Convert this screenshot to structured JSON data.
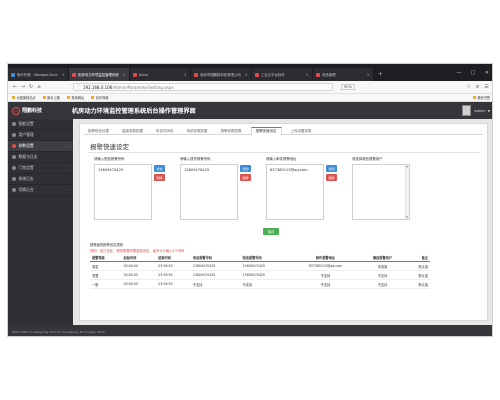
{
  "browser": {
    "tabs": [
      {
        "label": "轴令外观 - ManagerZone",
        "color": "#3b8dd8",
        "active": false
      },
      {
        "label": "机房动力环境监控管理系统",
        "color": "#e04b4b",
        "active": true
      },
      {
        "label": "Avina",
        "color": "#e04b4b",
        "active": false
      },
      {
        "label": "深圳市翔鹏精科技有限公司",
        "color": "#e04b4b",
        "active": false
      },
      {
        "label": "工业云平台标件",
        "color": "#e04b4b",
        "active": false
      },
      {
        "label": "商品管理",
        "color": "#e04b4b",
        "active": false
      }
    ],
    "url_host": "192.168.0.106",
    "url_path": "/Admin/ParameterSetting.aspx",
    "zoom": "90%",
    "bookmarks": [
      "大图案档站点",
      "新手上路",
      "常用网址",
      "京东商城"
    ],
    "other_bookmarks": "其他书签"
  },
  "app": {
    "logo_text": "翔鹏科技",
    "title": "机房动力环境监控管理系统后台操作管理界面",
    "user": "admin"
  },
  "sidebar": {
    "items": [
      {
        "label": "智能设置",
        "active": false
      },
      {
        "label": "用户管理",
        "active": false
      },
      {
        "label": "参数设置",
        "active": true
      },
      {
        "label": "数据与日志",
        "active": false
      },
      {
        "label": "门禁设置",
        "active": false
      },
      {
        "label": "系统日志",
        "active": false
      },
      {
        "label": "切换后台",
        "active": false
      }
    ]
  },
  "main": {
    "tabs": [
      "报警短信设置",
      "温度参数配置",
      "布控时间设",
      "系统参数配置",
      "报警参数配置",
      "报警快速设定",
      "上传设置参数"
    ],
    "active_tab": 5,
    "section_title": "报警快速设定",
    "fields": [
      {
        "label": "请输入短信报警号码",
        "value": "13609470429"
      },
      {
        "label": "请输入拨号报警号码",
        "value": "13609470429"
      },
      {
        "label": "请输入邮件报警地址",
        "value": "837389113@qq.com"
      },
      {
        "label": "请选择微信报警用户",
        "value": ""
      }
    ],
    "add_label": "增加",
    "delete_label": "删除",
    "save_label": "保存",
    "note1": "报警级别报警设定规则：",
    "note2": "规则：若已设定，修改配置则需重新设定，最多可以输入5个号码",
    "table": {
      "headers": [
        "报警等级",
        "起始时间",
        "结束时间",
        "电话报警号码",
        "短信报警号码",
        "邮件报警地址",
        "微信报警用户",
        "备注"
      ],
      "rows": [
        [
          "紧急",
          "00:00:00",
          "23:59:59",
          "13609470429",
          "13609470429",
          "837389113@qq.com",
          "未设置",
          "默认值"
        ],
        [
          "重要",
          "00:00:00",
          "23:59:59",
          "13609470429",
          "13609470429",
          "不支持",
          "不支持",
          "默认值"
        ],
        [
          "一般",
          "00:00:00",
          "23:59:59",
          "不支持",
          "不支持",
          "不支持",
          "不支持",
          "默认值"
        ]
      ]
    }
  },
  "footer": "2015-2020 © Design By Xiao Lin Xiangpeng Technology Team"
}
